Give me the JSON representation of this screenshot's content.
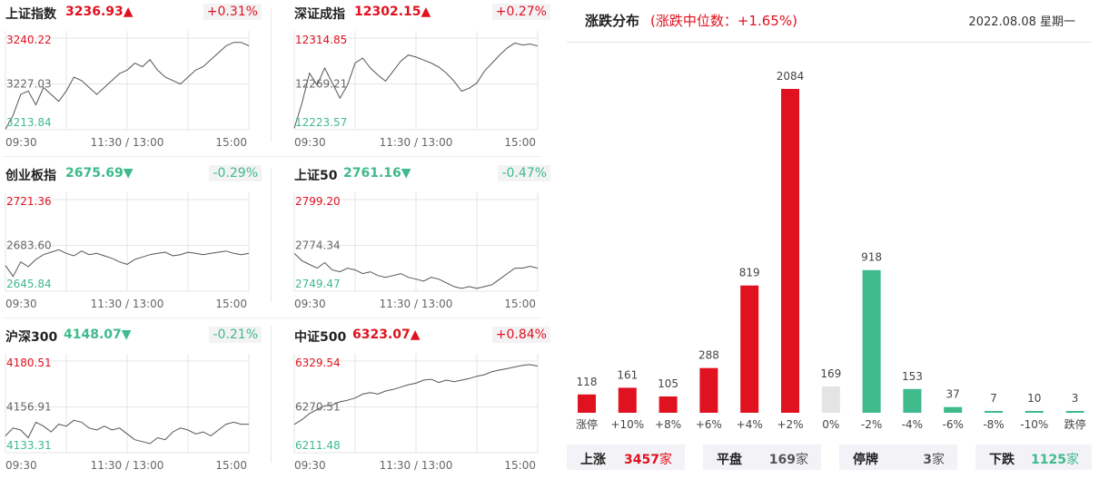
{
  "colors": {
    "up": "#e0121f",
    "down": "#3eba8c",
    "flat": "#e4e4e4",
    "line": "#555555"
  },
  "indices": [
    {
      "name": "上证指数",
      "price": "3236.93",
      "arrow": "▲",
      "change": "+0.31%",
      "dir": "up",
      "y_high": "3240.22",
      "y_mid": "3227.03",
      "y_low": "3213.84",
      "chart_data": {
        "type": "line",
        "x_ticks": [
          "09:30",
          "11:30 / 13:00",
          "15:00"
        ],
        "ylim": [
          3213.84,
          3240.22
        ],
        "values": [
          3214,
          3218,
          3224,
          3225,
          3221,
          3226,
          3224,
          3222,
          3225,
          3229,
          3228,
          3226,
          3224,
          3226,
          3228,
          3230,
          3231,
          3233,
          3232,
          3234,
          3231,
          3229,
          3228,
          3227,
          3229,
          3231,
          3232,
          3234,
          3236,
          3238,
          3239,
          3239,
          3238
        ]
      }
    },
    {
      "name": "深证成指",
      "price": "12302.15",
      "arrow": "▲",
      "change": "+0.27%",
      "dir": "up",
      "y_high": "12314.85",
      "y_mid": "12269.21",
      "y_low": "12223.57",
      "chart_data": {
        "type": "line",
        "x_ticks": [
          "09:30",
          "11:30 / 13:00",
          "15:00"
        ],
        "ylim": [
          12223.57,
          12314.85
        ],
        "values": [
          12225,
          12250,
          12280,
          12268,
          12285,
          12270,
          12255,
          12268,
          12290,
          12295,
          12285,
          12278,
          12272,
          12282,
          12292,
          12298,
          12296,
          12293,
          12290,
          12286,
          12280,
          12272,
          12262,
          12265,
          12270,
          12282,
          12290,
          12298,
          12305,
          12310,
          12308,
          12309,
          12307
        ]
      }
    },
    {
      "name": "创业板指",
      "price": "2675.69",
      "arrow": "▼",
      "change": "-0.29%",
      "dir": "down",
      "y_high": "2721.36",
      "y_mid": "2683.60",
      "y_low": "2645.84",
      "chart_data": {
        "type": "line",
        "x_ticks": [
          "09:30",
          "11:30 / 13:00",
          "15:00"
        ],
        "ylim": [
          2645.84,
          2721.36
        ],
        "values": [
          2667,
          2658,
          2670,
          2666,
          2672,
          2676,
          2678,
          2680,
          2677,
          2675,
          2679,
          2676,
          2677,
          2675,
          2673,
          2670,
          2668,
          2672,
          2674,
          2676,
          2677,
          2678,
          2675,
          2676,
          2678,
          2677,
          2676,
          2677,
          2678,
          2679,
          2677,
          2676,
          2677
        ]
      }
    },
    {
      "name": "上证50",
      "price": "2761.16",
      "arrow": "▼",
      "change": "-0.47%",
      "dir": "down",
      "y_high": "2799.20",
      "y_mid": "2774.34",
      "y_low": "2749.47",
      "chart_data": {
        "type": "line",
        "x_ticks": [
          "09:30",
          "11:30 / 13:00",
          "15:00"
        ],
        "ylim": [
          2749.47,
          2799.2
        ],
        "values": [
          2770,
          2766,
          2764,
          2762,
          2765,
          2761,
          2760,
          2762,
          2761,
          2759,
          2760,
          2758,
          2757,
          2758,
          2759,
          2757,
          2756,
          2755,
          2757,
          2756,
          2754,
          2752,
          2751,
          2752,
          2751,
          2752,
          2753,
          2756,
          2759,
          2762,
          2762,
          2763,
          2762
        ]
      }
    },
    {
      "name": "沪深300",
      "price": "4148.07",
      "arrow": "▼",
      "change": "-0.21%",
      "dir": "down",
      "y_high": "4180.51",
      "y_mid": "4156.91",
      "y_low": "4133.31",
      "chart_data": {
        "type": "line",
        "x_ticks": [
          "09:30",
          "11:30 / 13:00",
          "15:00"
        ],
        "ylim": [
          4133.31,
          4180.51
        ],
        "values": [
          4142,
          4146,
          4145,
          4141,
          4149,
          4147,
          4144,
          4148,
          4147,
          4150,
          4149,
          4146,
          4145,
          4147,
          4145,
          4146,
          4143,
          4140,
          4139,
          4138,
          4141,
          4140,
          4144,
          4146,
          4145,
          4143,
          4144,
          4142,
          4145,
          4148,
          4149,
          4148,
          4148
        ]
      }
    },
    {
      "name": "中证500",
      "price": "6323.07",
      "arrow": "▲",
      "change": "+0.84%",
      "dir": "up",
      "y_high": "6329.54",
      "y_mid": "6270.51",
      "y_low": "6211.48",
      "chart_data": {
        "type": "line",
        "x_ticks": [
          "09:30",
          "11:30 / 13:00",
          "15:00"
        ],
        "ylim": [
          6211.48,
          6329.54
        ],
        "values": [
          6248,
          6254,
          6262,
          6267,
          6272,
          6273,
          6277,
          6279,
          6282,
          6287,
          6289,
          6287,
          6291,
          6293,
          6296,
          6299,
          6301,
          6305,
          6306,
          6302,
          6305,
          6303,
          6305,
          6307,
          6310,
          6312,
          6316,
          6318,
          6320,
          6322,
          6324,
          6325,
          6323
        ]
      }
    }
  ],
  "distribution": {
    "title": "涨跌分布",
    "subtitle": "(涨跌中位数：+1.65%)",
    "date": "2022.08.08 星期一",
    "chart_data": {
      "type": "bar",
      "categories": [
        "涨停",
        "+10%",
        "+8%",
        "+6%",
        "+4%",
        "+2%",
        "0%",
        "-2%",
        "-4%",
        "-6%",
        "-8%",
        "-10%",
        "跌停"
      ],
      "values": [
        118,
        161,
        105,
        288,
        819,
        2084,
        169,
        918,
        153,
        37,
        7,
        10,
        3
      ],
      "kinds": [
        "up",
        "up",
        "up",
        "up",
        "up",
        "up",
        "flat",
        "down",
        "down",
        "down",
        "down",
        "down",
        "down"
      ]
    },
    "summary": [
      {
        "label": "上涨",
        "value": "3457",
        "unit": "家",
        "dir": "up"
      },
      {
        "label": "平盘",
        "value": "169",
        "unit": "家",
        "dir": "flat"
      },
      {
        "label": "停牌",
        "value": "3",
        "unit": "家",
        "dir": "flat"
      },
      {
        "label": "下跌",
        "value": "1125",
        "unit": "家",
        "dir": "down"
      }
    ]
  }
}
